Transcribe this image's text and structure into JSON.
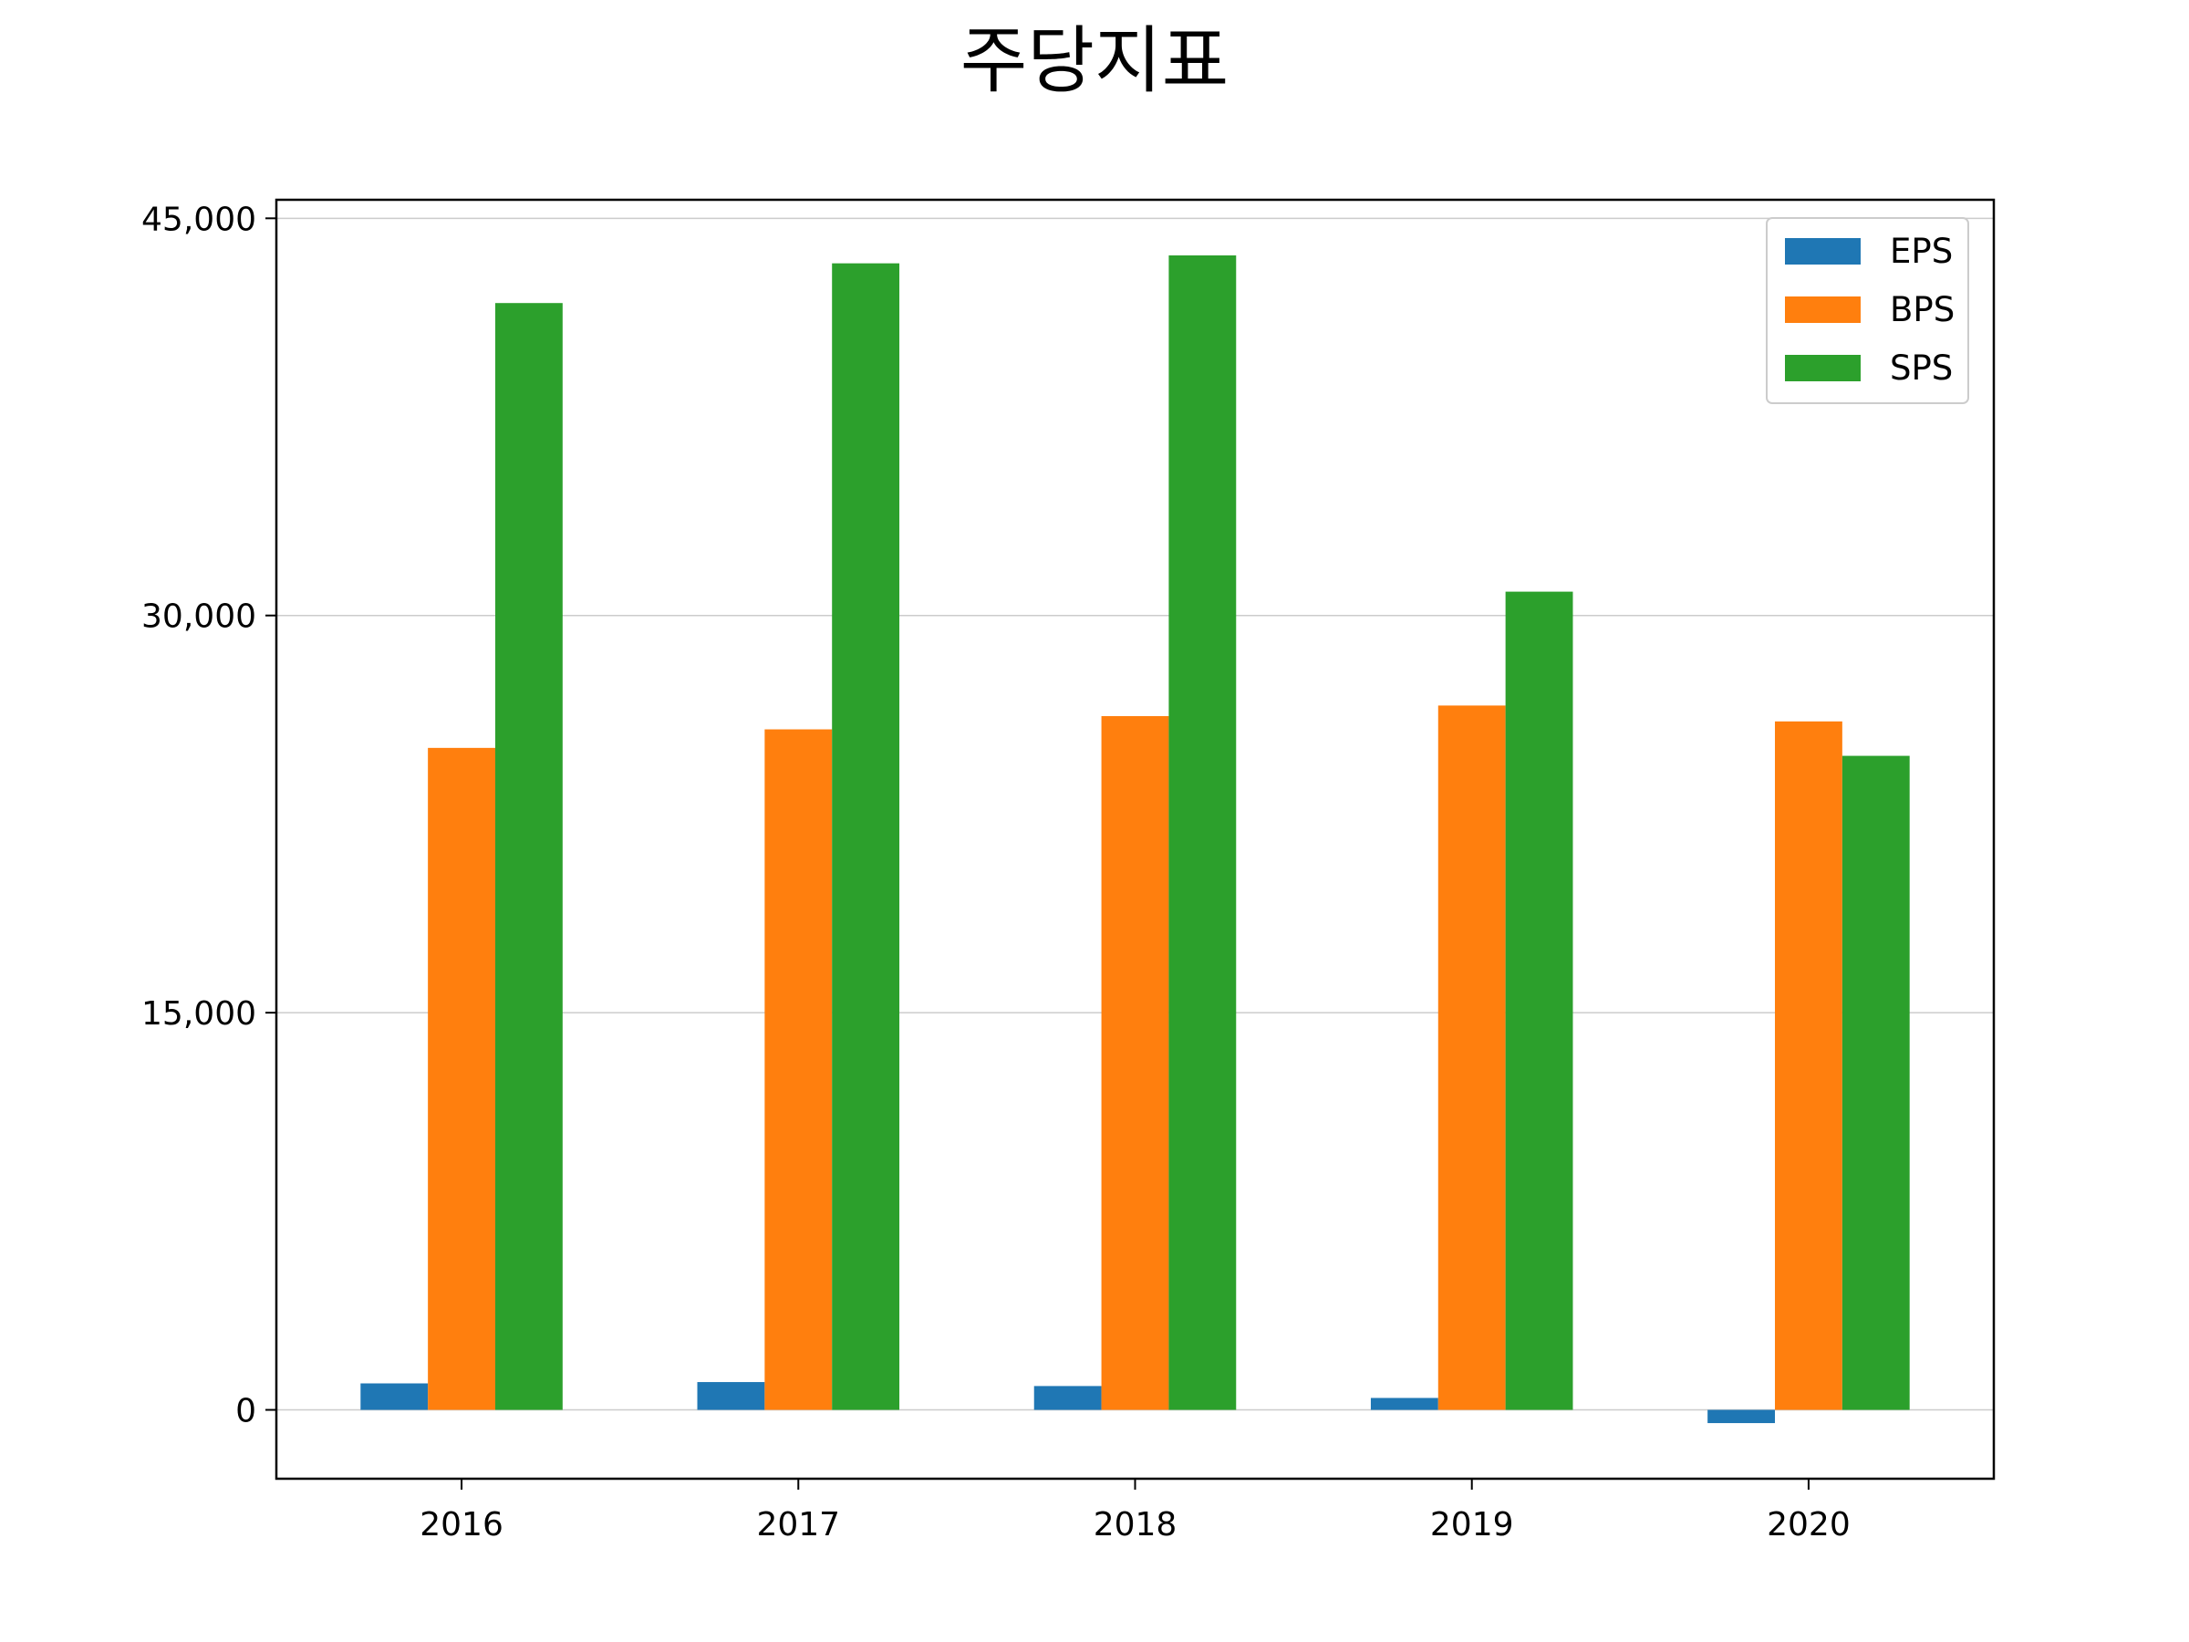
{
  "chart_data": {
    "type": "bar",
    "title": "주당지표",
    "xlabel": "",
    "ylabel": "",
    "categories": [
      "2016",
      "2017",
      "2018",
      "2019",
      "2020"
    ],
    "series": [
      {
        "name": "EPS",
        "color": "#1f77b4",
        "values": [
          1000,
          1050,
          900,
          450,
          -500
        ]
      },
      {
        "name": "BPS",
        "color": "#ff7f0e",
        "values": [
          25000,
          25700,
          26200,
          26600,
          26000
        ]
      },
      {
        "name": "SPS",
        "color": "#2ca02c",
        "values": [
          41800,
          43300,
          43600,
          30900,
          24700
        ]
      }
    ],
    "ylim": [
      -2600,
      45700
    ],
    "yticks": [
      0,
      15000,
      30000,
      45000
    ],
    "ytick_labels": [
      "0",
      "15,000",
      "30,000",
      "45,000"
    ],
    "grid": "y",
    "legend_position": "top-right"
  }
}
